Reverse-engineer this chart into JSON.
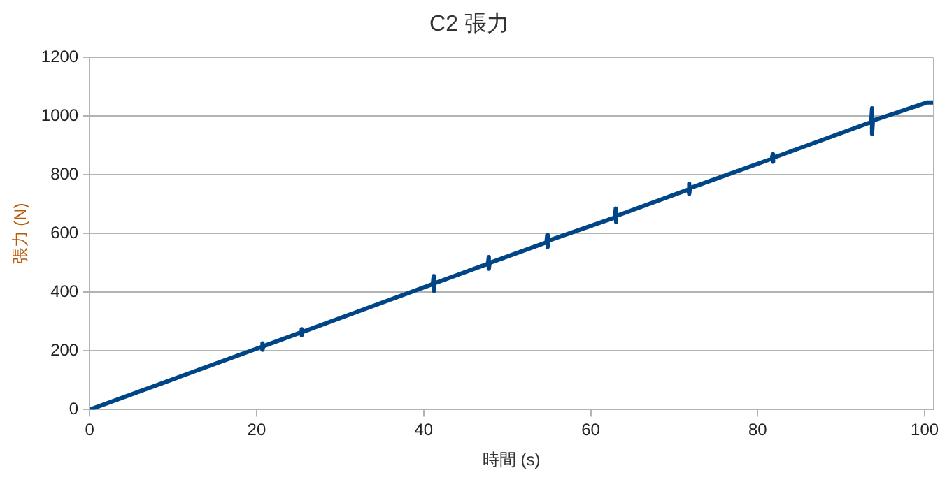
{
  "chart_data": {
    "type": "line",
    "title": "C2 張力",
    "xlabel": "時間 (s)",
    "ylabel": "張力 (N)",
    "xlim": [
      0,
      101
    ],
    "xticks": [
      0,
      20,
      40,
      60,
      80,
      100
    ],
    "ylim": [
      0,
      1200
    ],
    "yticks": [
      0,
      200,
      400,
      600,
      800,
      1000,
      1200
    ],
    "grid": "y",
    "legend": false,
    "marker": "none",
    "line_style": "solid",
    "series": [
      {
        "color": "#004586",
        "x": [
          0,
          20.6,
          20.7,
          20.7,
          20.8,
          25.3,
          25.4,
          25.4,
          25.5,
          41.1,
          41.2,
          41.2,
          41.3,
          47.7,
          47.8,
          47.8,
          47.9,
          54.7,
          54.8,
          54.8,
          54.9,
          62.9,
          63.0,
          63.0,
          63.1,
          71.7,
          71.8,
          71.8,
          71.9,
          81.7,
          81.8,
          81.8,
          81.9,
          93.6,
          93.7,
          93.7,
          93.8,
          100.3,
          101
        ],
        "values": [
          0,
          214,
          226,
          204,
          216,
          263,
          274,
          254,
          265,
          428,
          455,
          405,
          430,
          497,
          520,
          480,
          500,
          570,
          595,
          555,
          575,
          655,
          685,
          640,
          660,
          750,
          770,
          735,
          755,
          855,
          870,
          845,
          858,
          980,
          1027,
          940,
          985,
          1047,
          1047
        ]
      }
    ]
  }
}
